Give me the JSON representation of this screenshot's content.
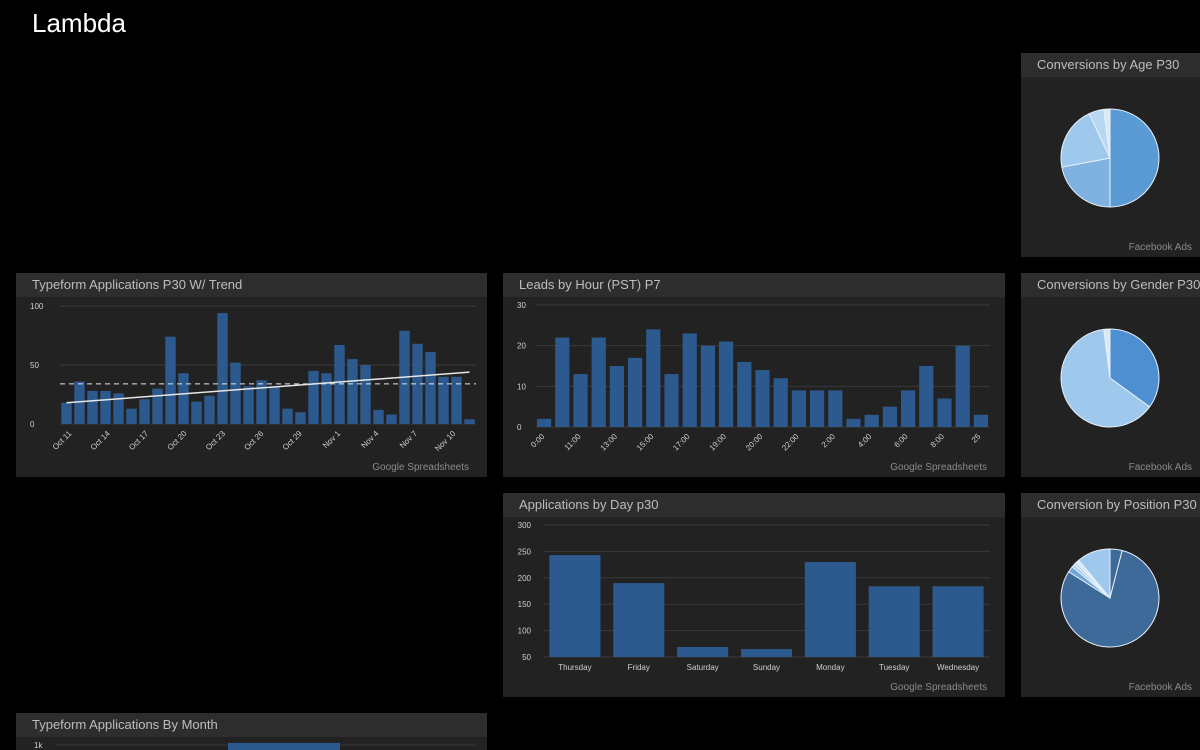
{
  "page": {
    "title": "Lambda"
  },
  "colors": {
    "bar": "#2d5a8e",
    "grid": "#3a3a3a",
    "tick": "#cfcfcf",
    "trend": "#e6e6e6",
    "pie_light": "#9ec8ec",
    "pie_mid": "#6fa8dc",
    "pie_strong": "#4d8fd0",
    "pie_dark": "#3d6a99"
  },
  "panels": {
    "typeform_trend": {
      "title": "Typeform Applications P30 W/ Trend",
      "source": "Google Spreadsheets"
    },
    "leads_hour": {
      "title": "Leads by Hour (PST) P7",
      "source": "Google Spreadsheets"
    },
    "apps_day": {
      "title": "Applications by Day p30",
      "source": "Google Spreadsheets"
    },
    "conv_age": {
      "title": "Conversions by Age P30",
      "source": "Facebook Ads"
    },
    "conv_gender": {
      "title": "Conversions by Gender P30",
      "source": "Facebook Ads"
    },
    "conv_position": {
      "title": "Conversion by Position P30",
      "source": "Facebook Ads"
    },
    "typeform_month": {
      "title": "Typeform Applications By Month"
    }
  },
  "chart_data": [
    {
      "id": "typeform_trend",
      "type": "bar",
      "ylim": [
        0,
        100
      ],
      "yticks": [
        "0",
        "50",
        "100"
      ],
      "ytick_values": [
        0,
        50,
        100
      ],
      "xtick_labels": [
        "Oct 11",
        "Oct 14",
        "Oct 17",
        "Oct 20",
        "Oct 23",
        "Oct 26",
        "Oct 29",
        "Nov 1",
        "Nov 4",
        "Nov 7",
        "Nov 10"
      ],
      "values": [
        18,
        36,
        28,
        28,
        26,
        13,
        21,
        30,
        74,
        43,
        19,
        24,
        94,
        52,
        32,
        37,
        32,
        13,
        10,
        45,
        43,
        67,
        55,
        50,
        12,
        8,
        79,
        68,
        61,
        40,
        40,
        4
      ],
      "trend": [
        18,
        44
      ],
      "average": 34
    },
    {
      "id": "leads_hour",
      "type": "bar",
      "ylim": [
        0,
        30
      ],
      "yticks": [
        "0",
        "10",
        "20",
        "30"
      ],
      "ytick_values": [
        0,
        10,
        20,
        30
      ],
      "xtick_labels": [
        "0:00",
        "11:00",
        "13:00",
        "15:00",
        "17:00",
        "19:00",
        "20:00",
        "22:00",
        "2:00",
        "4:00",
        "6:00",
        "8:00",
        "25"
      ],
      "values": [
        2,
        22,
        13,
        22,
        15,
        17,
        24,
        13,
        23,
        20,
        21,
        16,
        14,
        12,
        9,
        9,
        9,
        2,
        3,
        5,
        9,
        15,
        7,
        20,
        3
      ]
    },
    {
      "id": "apps_day",
      "type": "bar",
      "ylim": [
        50,
        300
      ],
      "yticks": [
        "50",
        "100",
        "150",
        "200",
        "250",
        "300"
      ],
      "ytick_values": [
        50,
        100,
        150,
        200,
        250,
        300
      ],
      "categories": [
        "Thursday",
        "Friday",
        "Saturday",
        "Sunday",
        "Monday",
        "Tuesday",
        "Wednesday"
      ],
      "values": [
        243,
        190,
        69,
        65,
        230,
        184,
        184
      ]
    },
    {
      "id": "conv_age",
      "type": "pie",
      "values": [
        50,
        22,
        21,
        5,
        2
      ],
      "colors": [
        "#5a9bd5",
        "#7fb2e0",
        "#9ec8ec",
        "#b8d8f2",
        "#dce9f5"
      ]
    },
    {
      "id": "conv_gender",
      "type": "pie",
      "values": [
        35,
        63,
        2
      ],
      "colors": [
        "#4d8fd0",
        "#9ec8ec",
        "#dce9f5"
      ]
    },
    {
      "id": "conv_position",
      "type": "pie",
      "values": [
        4,
        80,
        2,
        1,
        1,
        1,
        11
      ],
      "colors": [
        "#3d6a99",
        "#3d6a99",
        "#6fa8dc",
        "#9ec8ec",
        "#b8d8f2",
        "#dce9f5",
        "#9ec8ec"
      ]
    },
    {
      "id": "typeform_month",
      "type": "bar",
      "yticks": [
        "1k"
      ],
      "values": []
    }
  ]
}
